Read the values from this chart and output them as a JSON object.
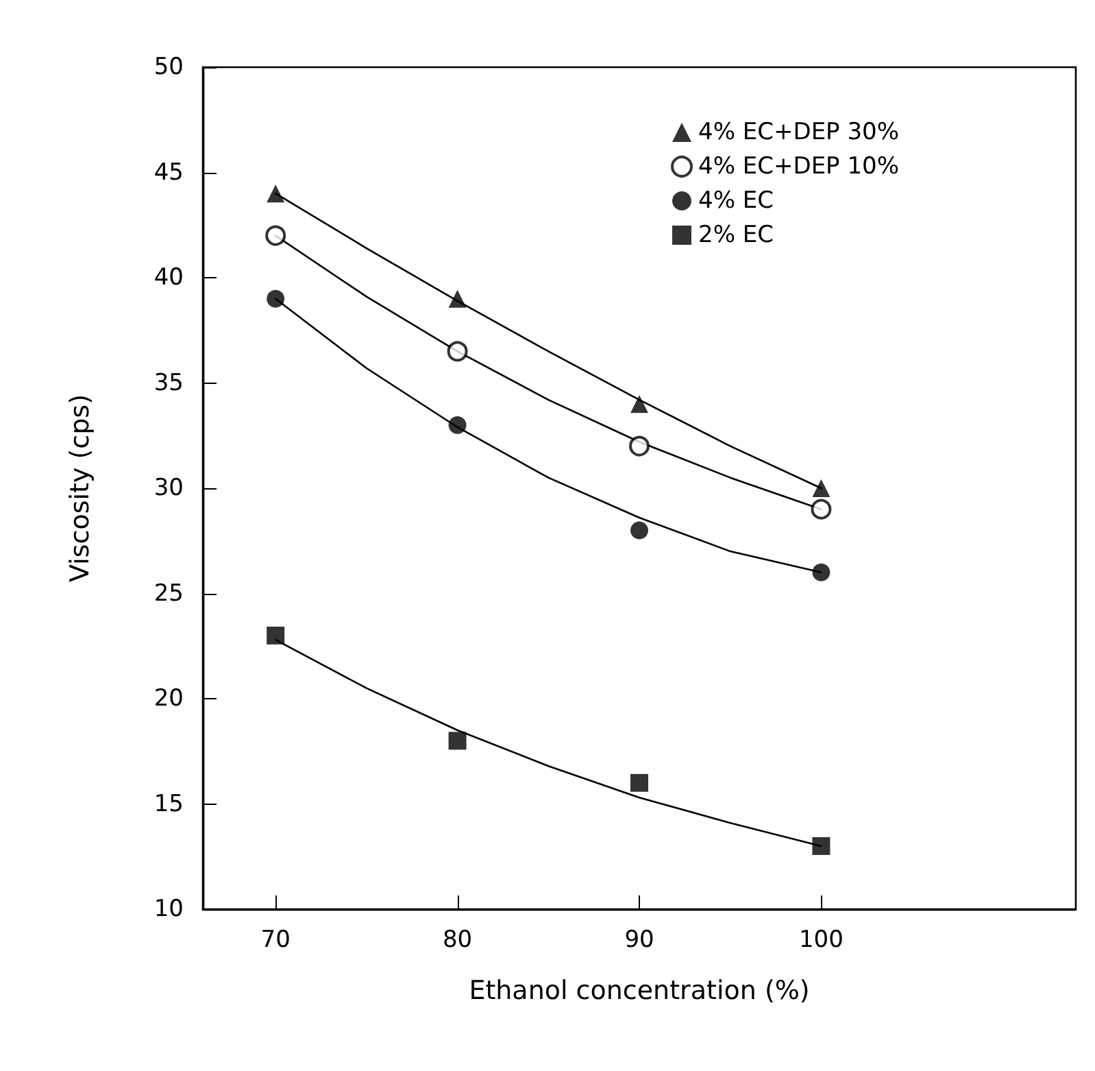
{
  "chart_data": {
    "type": "scatter",
    "xlabel": "Ethanol concentration (%)",
    "ylabel": "Viscosity (cps)",
    "xlim": [
      66,
      114
    ],
    "xticks": [
      70,
      80,
      90,
      100
    ],
    "ylim": [
      10,
      50
    ],
    "yticks": [
      10,
      15,
      20,
      25,
      30,
      35,
      40,
      45,
      50
    ],
    "grid": false,
    "legend": "top right",
    "series": [
      {
        "name": "4% EC+DEP 30%",
        "color": "#000000",
        "marker": "triangle",
        "x": [
          70,
          80,
          90,
          100
        ],
        "values": [
          44,
          39,
          34,
          30
        ]
      },
      {
        "name": "4% EC+DEP 10%",
        "color": "#000000",
        "marker": "open circle",
        "x": [
          70,
          80,
          90,
          100
        ],
        "values": [
          42,
          36.5,
          32,
          29
        ]
      },
      {
        "name": "4% EC",
        "color": "#000000",
        "marker": "circle",
        "x": [
          70,
          80,
          90,
          100
        ],
        "values": [
          39,
          33,
          28,
          26
        ]
      },
      {
        "name": "2% EC",
        "color": "#000000",
        "marker": "square",
        "x": [
          70,
          80,
          90,
          100
        ],
        "values": [
          23,
          18,
          16,
          13
        ]
      },
      {
        "type": "line",
        "color": "#000000",
        "x": [
          70,
          75,
          80,
          85,
          90,
          95,
          100
        ],
        "values": [
          44,
          41.4,
          38.9,
          36.5,
          34.2,
          32,
          30
        ]
      },
      {
        "type": "line",
        "color": "#000000",
        "x": [
          70,
          75,
          80,
          85,
          90,
          95,
          100
        ],
        "values": [
          42,
          39.1,
          36.5,
          34.2,
          32.2,
          30.5,
          29
        ]
      },
      {
        "type": "line",
        "color": "#000000",
        "x": [
          70,
          75,
          80,
          85,
          90,
          95,
          100
        ],
        "values": [
          39,
          35.7,
          32.9,
          30.5,
          28.6,
          27,
          26
        ]
      },
      {
        "type": "line",
        "color": "#000000",
        "x": [
          70,
          75,
          80,
          85,
          90,
          95,
          100
        ],
        "values": [
          22.8,
          20.5,
          18.5,
          16.8,
          15.3,
          14.1,
          13
        ]
      }
    ]
  }
}
